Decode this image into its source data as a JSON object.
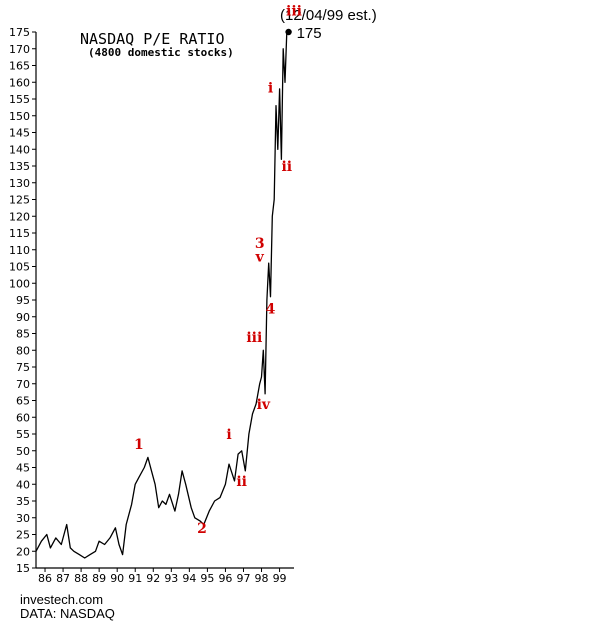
{
  "chart_data": {
    "type": "line",
    "title": "NASDAQ P/E RATIO",
    "subtitle": "(4800 domestic stocks)",
    "xlabel": "",
    "ylabel": "",
    "ylim": [
      15,
      175
    ],
    "xlim": [
      85.5,
      99.8
    ],
    "y_ticks": [
      15,
      20,
      25,
      30,
      35,
      40,
      45,
      50,
      55,
      60,
      65,
      70,
      75,
      80,
      85,
      90,
      95,
      100,
      105,
      110,
      115,
      120,
      125,
      130,
      135,
      140,
      145,
      150,
      155,
      160,
      165,
      170,
      175
    ],
    "x_ticks": [
      "86",
      "87",
      "88",
      "89",
      "90",
      "91",
      "92",
      "93",
      "94",
      "95",
      "96",
      "97",
      "98",
      "99"
    ],
    "series": [
      {
        "name": "",
        "x": [
          85.5,
          85.8,
          86.1,
          86.3,
          86.6,
          86.9,
          87.2,
          87.4,
          87.6,
          87.9,
          88.2,
          88.5,
          88.8,
          89.0,
          89.3,
          89.6,
          89.9,
          90.1,
          90.3,
          90.5,
          90.8,
          91.0,
          91.2,
          91.5,
          91.7,
          91.9,
          92.1,
          92.3,
          92.5,
          92.7,
          92.9,
          93.2,
          93.4,
          93.6,
          93.8,
          94.1,
          94.3,
          94.6,
          94.8,
          95.1,
          95.4,
          95.7,
          96.0,
          96.2,
          96.5,
          96.7,
          96.9,
          97.1,
          97.3,
          97.5,
          97.7,
          97.9,
          98.0,
          98.1,
          98.2,
          98.3,
          98.4,
          98.5,
          98.6,
          98.7,
          98.8,
          98.9,
          99.0,
          99.1,
          99.2,
          99.3,
          99.4,
          99.5
        ],
        "values": [
          20,
          23,
          25,
          21,
          24,
          22,
          28,
          21,
          20,
          19,
          18,
          19,
          20,
          23,
          22,
          24,
          27,
          22,
          19,
          28,
          34,
          40,
          42,
          45,
          48,
          44,
          40,
          33,
          35,
          34,
          37,
          32,
          37,
          44,
          40,
          33,
          30,
          29,
          28,
          32,
          35,
          36,
          40,
          46,
          41,
          49,
          50,
          44,
          55,
          61,
          64,
          70,
          72,
          80,
          67,
          95,
          106,
          96,
          120,
          125,
          153,
          140,
          158,
          137,
          170,
          160,
          175,
          175
        ]
      }
    ],
    "annotations": [
      {
        "text": "1",
        "x": 91.2,
        "y": 50.5
      },
      {
        "text": "2",
        "x": 94.7,
        "y": 25.5
      },
      {
        "text": "i",
        "x": 96.2,
        "y": 53.5
      },
      {
        "text": "ii",
        "x": 96.9,
        "y": 39.5
      },
      {
        "text": "iii",
        "x": 97.6,
        "y": 82.5
      },
      {
        "text": "iv",
        "x": 98.1,
        "y": 62.5
      },
      {
        "text": "3",
        "x": 97.9,
        "y": 110.5
      },
      {
        "text": "v",
        "x": 97.9,
        "y": 106.5
      },
      {
        "text": "4",
        "x": 98.5,
        "y": 91
      },
      {
        "text": "i",
        "x": 98.5,
        "y": 157
      },
      {
        "text": "ii",
        "x": 99.4,
        "y": 133.5
      },
      {
        "text": "iii",
        "x": 99.8,
        "y": 180
      }
    ],
    "peak_label": "175",
    "date_note": "(12/04/99 est.)",
    "grid": false,
    "annotation_color": "#d00000",
    "line_color": "#000000"
  },
  "footer": {
    "site": "investech.com",
    "source": "DATA:  NASDAQ"
  }
}
